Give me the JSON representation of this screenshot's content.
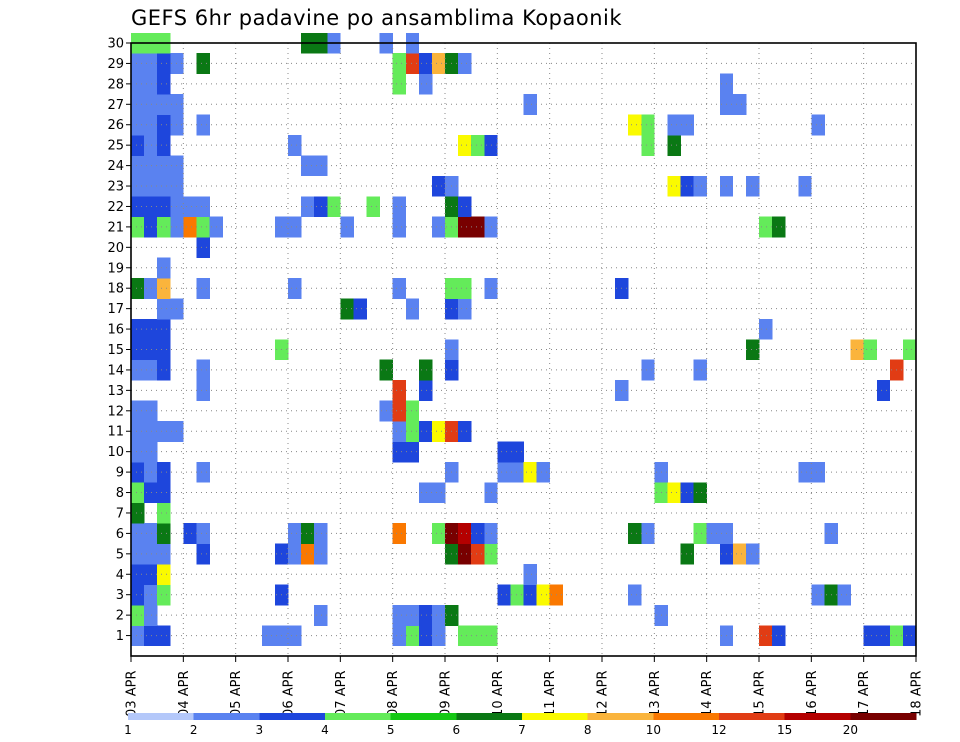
{
  "chart_data": {
    "type": "heatmap",
    "title": "GEFS 6hr padavine po ansamblima Kopaonik",
    "xlabel": "",
    "ylabel": "",
    "x_ticks": [
      "03 APR",
      "04 APR",
      "05 APR",
      "06 APR",
      "07 APR",
      "08 APR",
      "09 APR",
      "10 APR",
      "11 APR",
      "12 APR",
      "13 APR",
      "14 APR",
      "15 APR",
      "16 APR",
      "17 APR",
      "18 APR"
    ],
    "x_range_days": [
      0,
      15
    ],
    "step_days": 0.25,
    "y_ticks": [
      "1",
      "2",
      "3",
      "4",
      "5",
      "6",
      "7",
      "8",
      "9",
      "10",
      "11",
      "12",
      "13",
      "14",
      "15",
      "16",
      "17",
      "18",
      "19",
      "20",
      "21",
      "22",
      "23",
      "24",
      "25",
      "26",
      "27",
      "28",
      "29",
      "30"
    ],
    "y_range": [
      0,
      30
    ],
    "grid": true,
    "colorbar": {
      "labels": [
        "1",
        "2",
        "3",
        "4",
        "5",
        "6",
        "7",
        "8",
        "10",
        "12",
        "15",
        "20"
      ],
      "colors": [
        "#b4c8fa",
        "#5a82f0",
        "#1e46dc",
        "#64eb5a",
        "#14c814",
        "#0a7814",
        "#fafa00",
        "#fab43c",
        "#fa7800",
        "#e13c14",
        "#b40000",
        "#780000"
      ]
    },
    "cells": [
      [
        0,
        1,
        1
      ],
      [
        0,
        2,
        3
      ],
      [
        0,
        3,
        2
      ],
      [
        0,
        4,
        2
      ],
      [
        0,
        5,
        1
      ],
      [
        0,
        6,
        1
      ],
      [
        0,
        7,
        5
      ],
      [
        0,
        8,
        3
      ],
      [
        0,
        9,
        2
      ],
      [
        0,
        10,
        1
      ],
      [
        0,
        11,
        1
      ],
      [
        0,
        12,
        1
      ],
      [
        0,
        14,
        1
      ],
      [
        0,
        15,
        2
      ],
      [
        0,
        16,
        2
      ],
      [
        0,
        18,
        5
      ],
      [
        0,
        21,
        3
      ],
      [
        0,
        22,
        2
      ],
      [
        0,
        23,
        1
      ],
      [
        0,
        24,
        1
      ],
      [
        0,
        25,
        2
      ],
      [
        0,
        26,
        1
      ],
      [
        0,
        27,
        1
      ],
      [
        0,
        28,
        1
      ],
      [
        0,
        29,
        1
      ],
      [
        0,
        30,
        3
      ],
      [
        1,
        1,
        2
      ],
      [
        1,
        2,
        1
      ],
      [
        1,
        3,
        1
      ],
      [
        1,
        4,
        2
      ],
      [
        1,
        5,
        1
      ],
      [
        1,
        6,
        1
      ],
      [
        1,
        8,
        2
      ],
      [
        1,
        9,
        1
      ],
      [
        1,
        10,
        1
      ],
      [
        1,
        11,
        1
      ],
      [
        1,
        12,
        1
      ],
      [
        1,
        14,
        1
      ],
      [
        1,
        15,
        2
      ],
      [
        1,
        16,
        2
      ],
      [
        1,
        18,
        1
      ],
      [
        1,
        21,
        2
      ],
      [
        1,
        22,
        2
      ],
      [
        1,
        23,
        1
      ],
      [
        1,
        24,
        1
      ],
      [
        1,
        25,
        1
      ],
      [
        1,
        26,
        1
      ],
      [
        1,
        27,
        1
      ],
      [
        1,
        28,
        1
      ],
      [
        1,
        29,
        1
      ],
      [
        1,
        30,
        3
      ],
      [
        2,
        1,
        2
      ],
      [
        2,
        3,
        3
      ],
      [
        2,
        4,
        6
      ],
      [
        2,
        5,
        1
      ],
      [
        2,
        6,
        5
      ],
      [
        2,
        7,
        3
      ],
      [
        2,
        8,
        2
      ],
      [
        2,
        9,
        2
      ],
      [
        2,
        11,
        1
      ],
      [
        2,
        14,
        2
      ],
      [
        2,
        15,
        2
      ],
      [
        2,
        16,
        2
      ],
      [
        2,
        17,
        1
      ],
      [
        2,
        18,
        7
      ],
      [
        2,
        19,
        1
      ],
      [
        2,
        21,
        3
      ],
      [
        2,
        22,
        2
      ],
      [
        2,
        23,
        1
      ],
      [
        2,
        24,
        1
      ],
      [
        2,
        25,
        2
      ],
      [
        2,
        26,
        2
      ],
      [
        2,
        27,
        1
      ],
      [
        2,
        28,
        2
      ],
      [
        2,
        29,
        2
      ],
      [
        2,
        30,
        3
      ],
      [
        3,
        11,
        1
      ],
      [
        3,
        17,
        1
      ],
      [
        3,
        21,
        1
      ],
      [
        3,
        22,
        1
      ],
      [
        3,
        23,
        1
      ],
      [
        3,
        24,
        1
      ],
      [
        3,
        26,
        1
      ],
      [
        3,
        27,
        1
      ],
      [
        3,
        29,
        1
      ],
      [
        4,
        6,
        2
      ],
      [
        4,
        21,
        8
      ],
      [
        4,
        22,
        1
      ],
      [
        5,
        5,
        2
      ],
      [
        5,
        6,
        1
      ],
      [
        5,
        9,
        1
      ],
      [
        5,
        13,
        1
      ],
      [
        5,
        14,
        1
      ],
      [
        5,
        18,
        1
      ],
      [
        5,
        20,
        2
      ],
      [
        5,
        21,
        3
      ],
      [
        5,
        22,
        1
      ],
      [
        5,
        26,
        1
      ],
      [
        5,
        29,
        5
      ],
      [
        6,
        21,
        1
      ],
      [
        10,
        1,
        1
      ],
      [
        11,
        1,
        1
      ],
      [
        12,
        1,
        1
      ],
      [
        11,
        3,
        2
      ],
      [
        11,
        5,
        2
      ],
      [
        11,
        15,
        3
      ],
      [
        11,
        21,
        1
      ],
      [
        12,
        5,
        1
      ],
      [
        12,
        6,
        1
      ],
      [
        12,
        18,
        1
      ],
      [
        12,
        21,
        1
      ],
      [
        12,
        25,
        1
      ],
      [
        13,
        5,
        8
      ],
      [
        13,
        6,
        5
      ],
      [
        13,
        22,
        1
      ],
      [
        13,
        24,
        1
      ],
      [
        13,
        30,
        5
      ],
      [
        14,
        2,
        1
      ],
      [
        14,
        5,
        1
      ],
      [
        14,
        6,
        1
      ],
      [
        14,
        22,
        2
      ],
      [
        14,
        24,
        1
      ],
      [
        14,
        30,
        5
      ],
      [
        15,
        22,
        3
      ],
      [
        15,
        30,
        1
      ],
      [
        16,
        17,
        5
      ],
      [
        16,
        21,
        1
      ],
      [
        17,
        17,
        2
      ],
      [
        18,
        22,
        3
      ],
      [
        19,
        12,
        1
      ],
      [
        19,
        14,
        5
      ],
      [
        19,
        30,
        1
      ],
      [
        20,
        1,
        1
      ],
      [
        20,
        2,
        1
      ],
      [
        20,
        6,
        8
      ],
      [
        20,
        10,
        2
      ],
      [
        20,
        11,
        1
      ],
      [
        20,
        12,
        9
      ],
      [
        20,
        13,
        9
      ],
      [
        20,
        18,
        1
      ],
      [
        20,
        21,
        1
      ],
      [
        20,
        22,
        1
      ],
      [
        20,
        28,
        3
      ],
      [
        20,
        29,
        3
      ],
      [
        21,
        1,
        3
      ],
      [
        21,
        2,
        1
      ],
      [
        21,
        10,
        2
      ],
      [
        21,
        11,
        3
      ],
      [
        21,
        12,
        3
      ],
      [
        21,
        17,
        1
      ],
      [
        21,
        29,
        9
      ],
      [
        21,
        30,
        1
      ],
      [
        22,
        1,
        2
      ],
      [
        22,
        2,
        2
      ],
      [
        22,
        8,
        1
      ],
      [
        22,
        11,
        2
      ],
      [
        22,
        13,
        2
      ],
      [
        22,
        14,
        5
      ],
      [
        22,
        28,
        1
      ],
      [
        22,
        29,
        2
      ],
      [
        23,
        1,
        1
      ],
      [
        23,
        2,
        1
      ],
      [
        23,
        6,
        3
      ],
      [
        23,
        8,
        1
      ],
      [
        23,
        11,
        6
      ],
      [
        23,
        21,
        1
      ],
      [
        23,
        23,
        2
      ],
      [
        23,
        29,
        7
      ],
      [
        24,
        2,
        5
      ],
      [
        24,
        5,
        5
      ],
      [
        24,
        6,
        11
      ],
      [
        24,
        9,
        1
      ],
      [
        24,
        11,
        9
      ],
      [
        24,
        14,
        2
      ],
      [
        24,
        15,
        1
      ],
      [
        24,
        17,
        2
      ],
      [
        24,
        18,
        3
      ],
      [
        24,
        21,
        3
      ],
      [
        24,
        22,
        5
      ],
      [
        24,
        23,
        1
      ],
      [
        24,
        29,
        5
      ],
      [
        25,
        1,
        3
      ],
      [
        25,
        5,
        11
      ],
      [
        25,
        6,
        10
      ],
      [
        25,
        11,
        2
      ],
      [
        25,
        17,
        1
      ],
      [
        25,
        18,
        3
      ],
      [
        25,
        21,
        11
      ],
      [
        25,
        22,
        2
      ],
      [
        25,
        25,
        6
      ],
      [
        25,
        29,
        1
      ],
      [
        26,
        1,
        3
      ],
      [
        26,
        5,
        9
      ],
      [
        26,
        6,
        2
      ],
      [
        26,
        21,
        11
      ],
      [
        26,
        25,
        3
      ],
      [
        27,
        1,
        3
      ],
      [
        27,
        5,
        3
      ],
      [
        27,
        6,
        1
      ],
      [
        27,
        8,
        1
      ],
      [
        27,
        18,
        1
      ],
      [
        27,
        21,
        1
      ],
      [
        27,
        25,
        2
      ],
      [
        28,
        3,
        2
      ],
      [
        28,
        9,
        1
      ],
      [
        28,
        10,
        2
      ],
      [
        29,
        3,
        3
      ],
      [
        29,
        9,
        1
      ],
      [
        29,
        10,
        2
      ],
      [
        30,
        3,
        2
      ],
      [
        30,
        4,
        1
      ],
      [
        30,
        9,
        6
      ],
      [
        30,
        27,
        1
      ],
      [
        31,
        3,
        6
      ],
      [
        31,
        9,
        1
      ],
      [
        32,
        3,
        8
      ],
      [
        37,
        13,
        1
      ],
      [
        37,
        18,
        2
      ],
      [
        38,
        3,
        1
      ],
      [
        38,
        6,
        5
      ],
      [
        38,
        26,
        6
      ],
      [
        39,
        6,
        1
      ],
      [
        39,
        14,
        1
      ],
      [
        39,
        25,
        3
      ],
      [
        39,
        26,
        3
      ],
      [
        40,
        2,
        1
      ],
      [
        40,
        8,
        3
      ],
      [
        40,
        9,
        1
      ],
      [
        41,
        8,
        6
      ],
      [
        41,
        23,
        6
      ],
      [
        41,
        25,
        5
      ],
      [
        41,
        26,
        1
      ],
      [
        42,
        5,
        5
      ],
      [
        42,
        8,
        2
      ],
      [
        42,
        23,
        2
      ],
      [
        42,
        26,
        1
      ],
      [
        43,
        6,
        3
      ],
      [
        43,
        8,
        5
      ],
      [
        43,
        14,
        1
      ],
      [
        43,
        23,
        1
      ],
      [
        44,
        6,
        1
      ],
      [
        45,
        1,
        1
      ],
      [
        45,
        5,
        2
      ],
      [
        45,
        6,
        1
      ],
      [
        45,
        23,
        1
      ],
      [
        45,
        27,
        1
      ],
      [
        45,
        28,
        1
      ],
      [
        46,
        5,
        7
      ],
      [
        46,
        27,
        1
      ],
      [
        47,
        5,
        1
      ],
      [
        47,
        15,
        5
      ],
      [
        47,
        23,
        1
      ],
      [
        48,
        1,
        9
      ],
      [
        48,
        16,
        1
      ],
      [
        48,
        21,
        3
      ],
      [
        49,
        1,
        2
      ],
      [
        49,
        21,
        5
      ],
      [
        51,
        9,
        1
      ],
      [
        51,
        23,
        1
      ],
      [
        52,
        3,
        1
      ],
      [
        52,
        9,
        1
      ],
      [
        52,
        26,
        1
      ],
      [
        53,
        3,
        5
      ],
      [
        53,
        6,
        1
      ],
      [
        54,
        3,
        1
      ],
      [
        55,
        15,
        7
      ],
      [
        56,
        1,
        2
      ],
      [
        56,
        15,
        3
      ],
      [
        57,
        1,
        2
      ],
      [
        57,
        13,
        2
      ],
      [
        58,
        1,
        3
      ],
      [
        58,
        14,
        9
      ],
      [
        59,
        1,
        2
      ],
      [
        59,
        15,
        3
      ]
    ]
  }
}
